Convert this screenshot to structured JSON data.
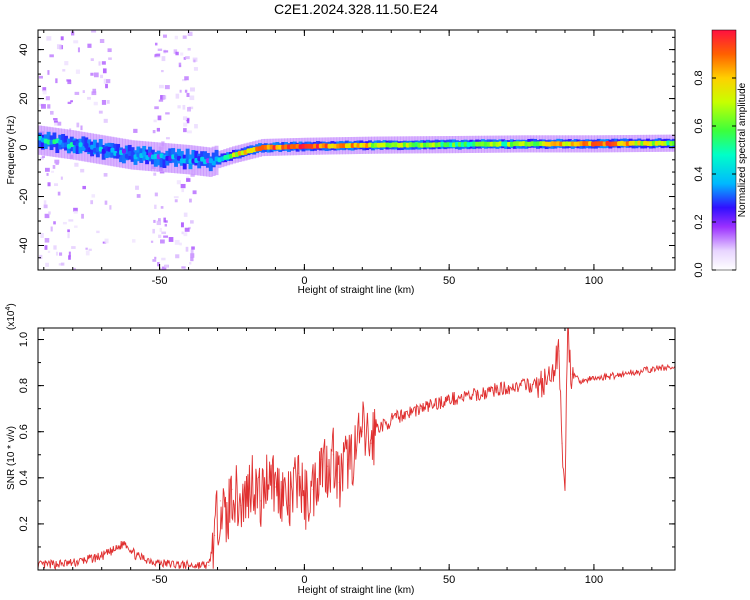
{
  "figure": {
    "title": "C2E1.2024.328.11.50.E24"
  },
  "chart_data": [
    {
      "type": "heatmap",
      "xlabel": "Height of straight line (km)",
      "ylabel": "Frequency (Hz)",
      "xlim": [
        -92,
        128
      ],
      "ylim": [
        -50,
        48
      ],
      "xticks": [
        -50,
        0,
        50,
        100
      ],
      "yticks": [
        -40,
        -20,
        0,
        20,
        40
      ],
      "colorbar": {
        "label": "Normalized spectral amplitude",
        "range": [
          0,
          1
        ],
        "ticks": [
          "0.0",
          "0.2",
          "0.4",
          "0.6",
          "0.8"
        ]
      },
      "ridge": {
        "description_points_x": [
          -92,
          -80,
          -70,
          -60,
          -50,
          -40,
          -33,
          -25,
          -15,
          0,
          25,
          50,
          75,
          100,
          128
        ],
        "frequency_hz": [
          3,
          1,
          -1,
          -3,
          -4,
          -5,
          -6,
          -3,
          0,
          0.5,
          1,
          1.2,
          1.5,
          1.5,
          1.8
        ],
        "normalized_amplitude": [
          0.45,
          0.4,
          0.35,
          0.3,
          0.3,
          0.35,
          0.25,
          0.7,
          0.9,
          0.95,
          0.7,
          0.55,
          0.6,
          0.9,
          0.6
        ]
      }
    },
    {
      "type": "line",
      "xlabel": "Height of straight line (km)",
      "ylabel": "SNR (10 * v/v)",
      "yscale_label": "(x10",
      "yscale_exp": "4",
      "xlim": [
        -92,
        128
      ],
      "ylim": [
        0,
        1.05
      ],
      "xticks": [
        -50,
        0,
        50,
        100
      ],
      "yticks": [
        0.2,
        0.4,
        0.6,
        0.8,
        1.0
      ],
      "ytick_labels": [
        "0.2",
        "0.4",
        "0.6",
        "0.8",
        "1.0"
      ],
      "series": [
        {
          "color": "#e03030",
          "x": [
            -92,
            -80,
            -70,
            -65,
            -62,
            -58,
            -50,
            -40,
            -33,
            -31,
            -29,
            -27,
            -25,
            -22,
            -20,
            -18,
            -15,
            -12,
            -10,
            -8,
            -5,
            -2,
            0,
            3,
            6,
            8,
            10,
            12,
            15,
            18,
            20,
            23,
            25,
            28,
            30,
            35,
            40,
            45,
            50,
            55,
            60,
            65,
            70,
            75,
            80,
            85,
            88,
            89,
            90,
            91,
            92,
            95,
            100,
            105,
            110,
            115,
            120,
            125,
            128
          ],
          "y": [
            0.02,
            0.03,
            0.06,
            0.09,
            0.12,
            0.06,
            0.03,
            0.02,
            0.02,
            0.15,
            0.3,
            0.2,
            0.35,
            0.28,
            0.32,
            0.4,
            0.3,
            0.45,
            0.36,
            0.35,
            0.28,
            0.42,
            0.3,
            0.35,
            0.48,
            0.45,
            0.5,
            0.38,
            0.48,
            0.52,
            0.6,
            0.55,
            0.62,
            0.63,
            0.65,
            0.68,
            0.7,
            0.72,
            0.74,
            0.75,
            0.76,
            0.78,
            0.79,
            0.8,
            0.8,
            0.82,
            0.95,
            0.55,
            0.38,
            1.05,
            0.85,
            0.82,
            0.83,
            0.84,
            0.85,
            0.86,
            0.87,
            0.88,
            0.87
          ]
        }
      ]
    }
  ]
}
